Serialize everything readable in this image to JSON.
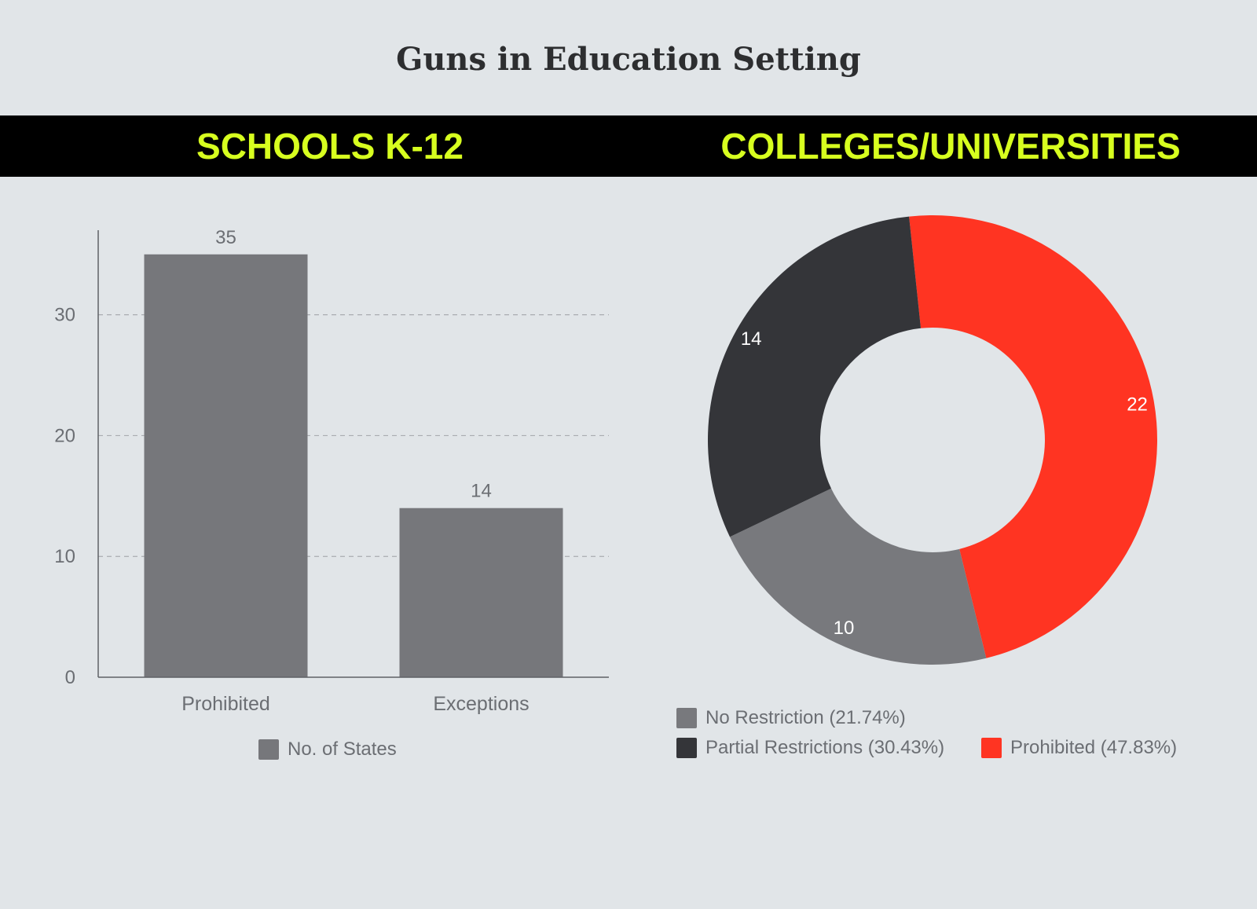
{
  "title": "Guns in Education Setting",
  "band": {
    "left_title": "SCHOOLS K-12",
    "right_title": "COLLEGES/UNIVERSITIES"
  },
  "colors": {
    "background": "#e1e5e8",
    "band": "#000000",
    "band_text": "#d7ff1f",
    "bar": "#76777b",
    "no_restriction": "#78797d",
    "partial_restrictions": "#343539",
    "prohibited": "#ff3422"
  },
  "chart_data": [
    {
      "type": "bar",
      "title": "SCHOOLS K-12",
      "categories": [
        "Prohibited",
        "Exceptions"
      ],
      "series": [
        {
          "name": "No. of States",
          "values": [
            35,
            14
          ]
        }
      ],
      "value_labels": [
        "35",
        "14"
      ],
      "y_ticks": [
        "0",
        "10",
        "20",
        "30"
      ],
      "ylim": [
        0,
        37
      ],
      "grid": "horizontal dashed",
      "legend": "bottom-center"
    },
    {
      "type": "pie",
      "style": "donut",
      "title": "COLLEGES/UNIVERSITIES",
      "slices": [
        {
          "label": "Prohibited",
          "value": 22,
          "value_label": "22",
          "legend": "Prohibited (47.83%)",
          "color": "#ff3422"
        },
        {
          "label": "No Restriction",
          "value": 10,
          "value_label": "10",
          "legend": "No Restriction (21.74%)",
          "color": "#78797d"
        },
        {
          "label": "Partial Restrictions",
          "value": 14,
          "value_label": "14",
          "legend": "Partial Restrictions (30.43%)",
          "color": "#343539"
        }
      ],
      "legend": "bottom"
    }
  ]
}
